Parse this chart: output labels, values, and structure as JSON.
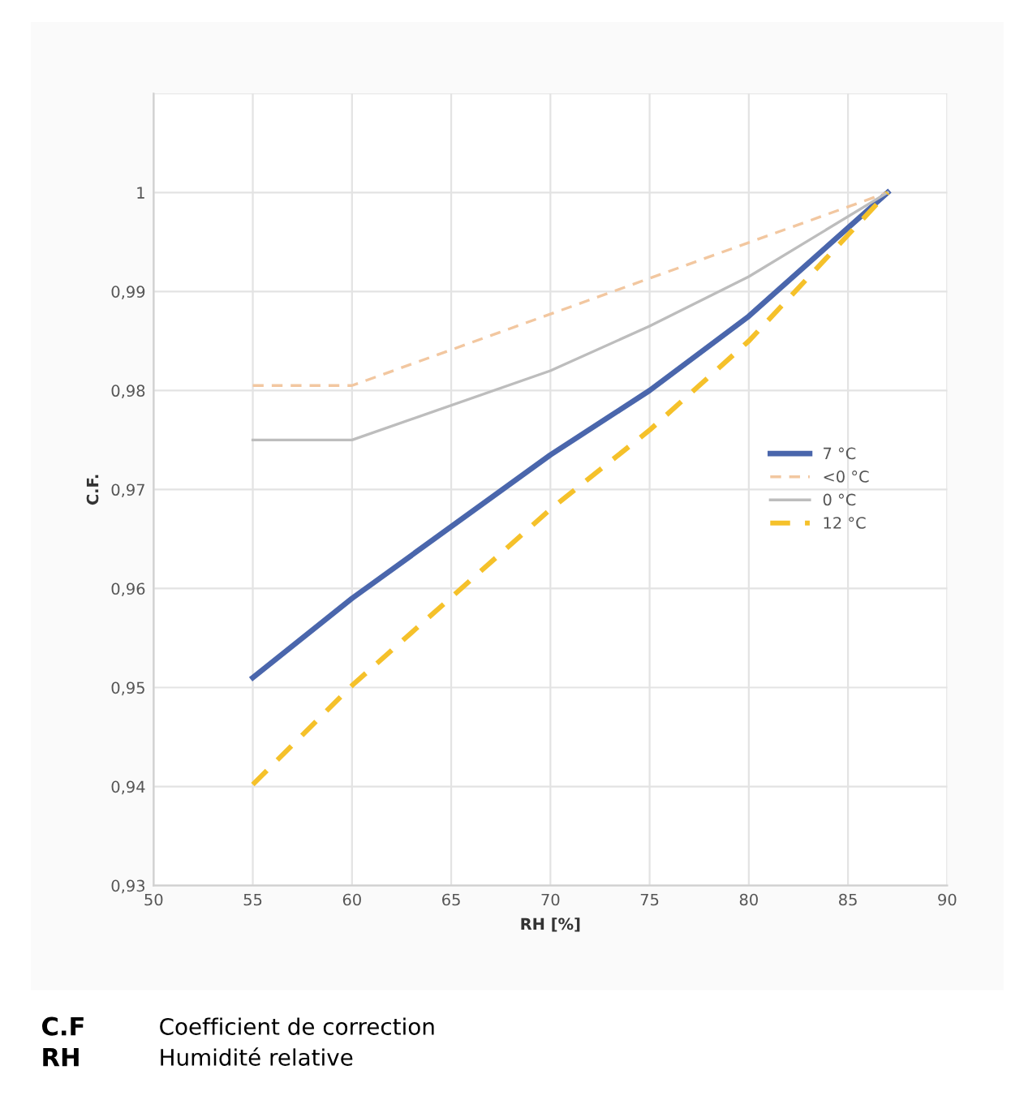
{
  "chart_data": {
    "type": "line",
    "xlabel": "RH [%]",
    "ylabel": "C.F.",
    "xlim": [
      50,
      90
    ],
    "xticks": [
      50,
      55,
      60,
      65,
      70,
      75,
      80,
      85,
      90
    ],
    "ylim": [
      0.93,
      1.01
    ],
    "yticks": [
      {
        "value": 0.93,
        "label": "0,93"
      },
      {
        "value": 0.94,
        "label": "0,94"
      },
      {
        "value": 0.95,
        "label": "0,95"
      },
      {
        "value": 0.96,
        "label": "0,96"
      },
      {
        "value": 0.97,
        "label": "0,97"
      },
      {
        "value": 0.98,
        "label": "0,98"
      },
      {
        "value": 0.99,
        "label": "0,99"
      },
      {
        "value": 1,
        "label": "1"
      },
      {
        "value": 1.01,
        "label": null
      }
    ],
    "grid": true,
    "legend": "right",
    "marker": "none",
    "series": [
      {
        "name": "7 °C",
        "color": "#4a66ac",
        "line_style": "solid",
        "x": [
          55,
          60,
          70,
          75,
          80,
          87
        ],
        "values": [
          0.951,
          0.959,
          0.9735,
          0.98,
          0.9875,
          1.0
        ]
      },
      {
        "name": "<0 °C",
        "color": "#f2c7a0",
        "line_style": "dashed",
        "x": [
          55,
          60,
          87
        ],
        "values": [
          0.9805,
          0.9805,
          1.0
        ]
      },
      {
        "name": "0 °C",
        "color": "#bdbdbd",
        "line_style": "solid",
        "x": [
          55,
          60,
          70,
          75,
          80,
          87
        ],
        "values": [
          0.975,
          0.975,
          0.982,
          0.9865,
          0.9915,
          1.0
        ]
      },
      {
        "name": "12 °C",
        "color": "#f5c12a",
        "line_style": "dashed",
        "x": [
          55,
          60,
          70,
          75,
          80,
          87
        ],
        "values": [
          0.9402,
          0.9502,
          0.968,
          0.976,
          0.985,
          1.0
        ]
      }
    ],
    "annotations": [
      "C.F Coefficient de correction",
      "RH Humidité relative"
    ]
  }
}
